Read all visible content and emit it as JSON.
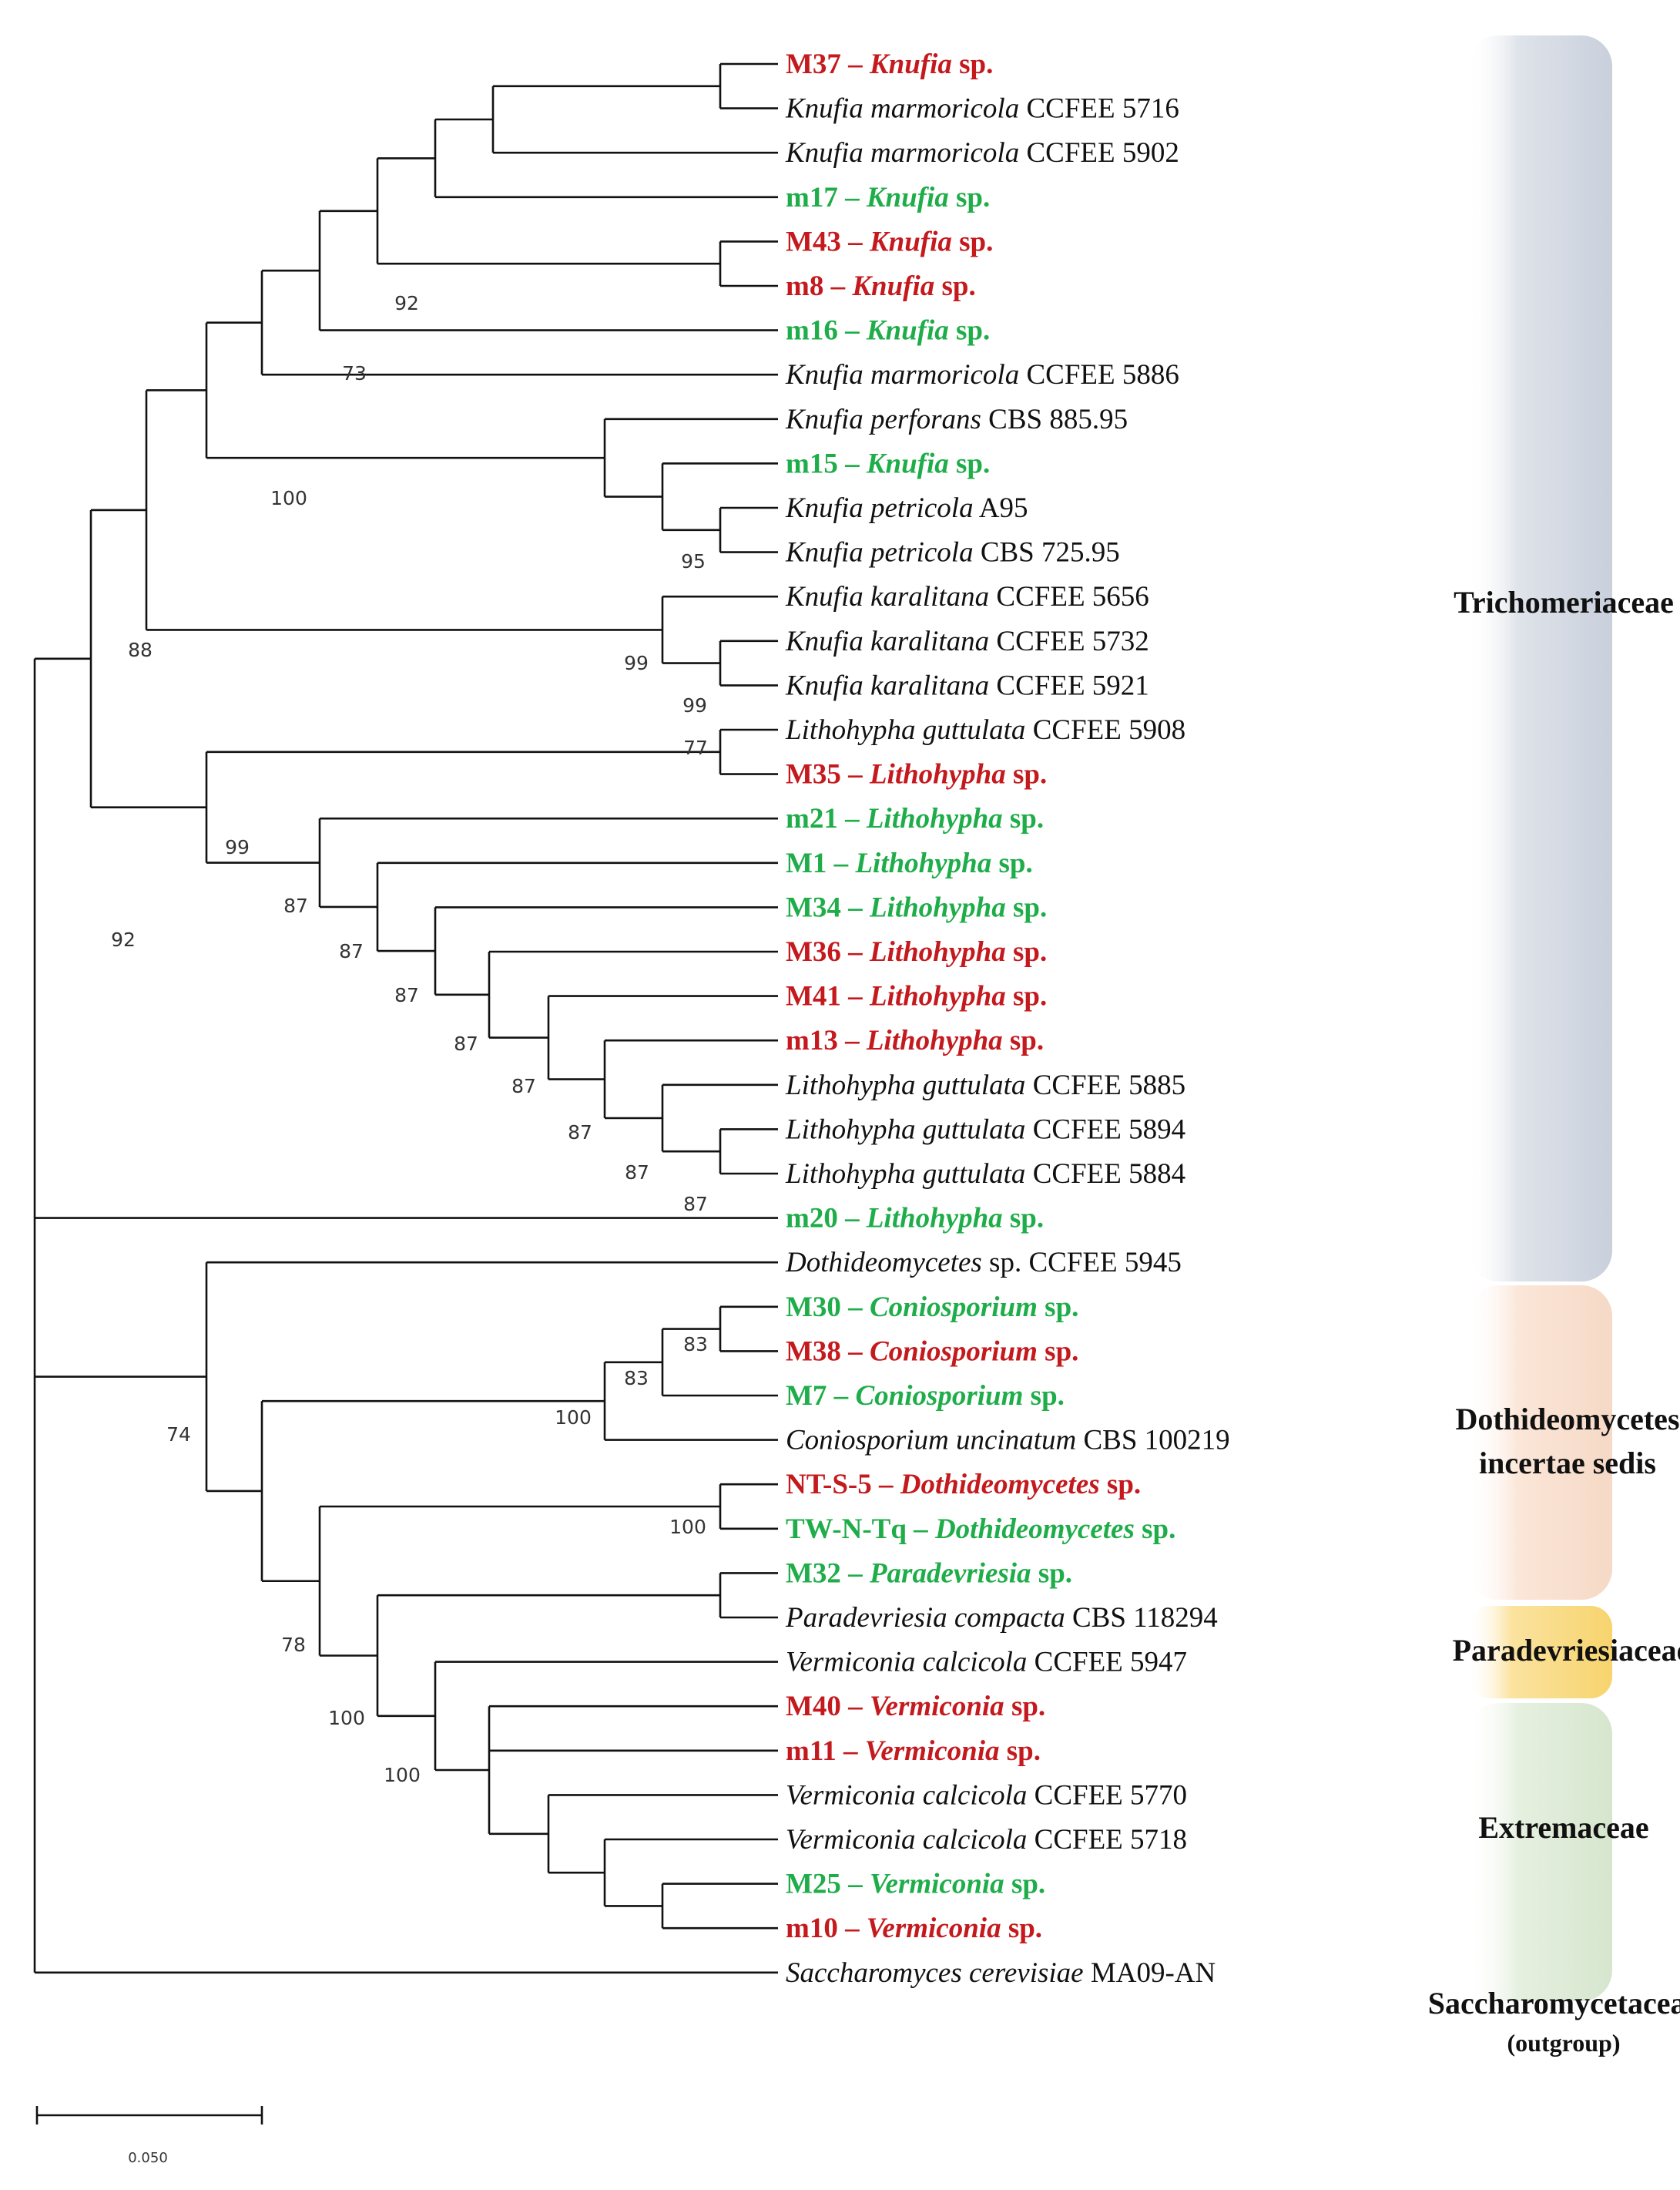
{
  "colors": {
    "red": "#c41a1e",
    "green": "#1fad4a",
    "black": "#111111",
    "band_trichomeriaceae": "#ced5e0",
    "band_dothideomycetes": "#f7ddcb",
    "band_paradevriesiaceae": "#f8d77c",
    "band_extremaceae": "#dbe9d3"
  },
  "taxa": [
    {
      "id": "M37",
      "style": "red",
      "parts": [
        [
          "M37 – ",
          0
        ],
        [
          "Knufia",
          1
        ],
        [
          " sp.",
          0
        ]
      ]
    },
    {
      "id": "KmarCCFEE5716",
      "style": "black",
      "parts": [
        [
          "Knufia marmoricola",
          1
        ],
        [
          " CCFEE 5716",
          0
        ]
      ]
    },
    {
      "id": "KmarCCFEE5902",
      "style": "black",
      "parts": [
        [
          "Knufia marmoricola",
          1
        ],
        [
          " CCFEE 5902",
          0
        ]
      ]
    },
    {
      "id": "m17",
      "style": "green",
      "parts": [
        [
          "m17 – ",
          0
        ],
        [
          "Knufia",
          1
        ],
        [
          " sp.",
          0
        ]
      ]
    },
    {
      "id": "M43",
      "style": "red",
      "parts": [
        [
          "M43 – ",
          0
        ],
        [
          "Knufia",
          1
        ],
        [
          " sp.",
          0
        ]
      ]
    },
    {
      "id": "m8",
      "style": "red",
      "parts": [
        [
          "m8 – ",
          0
        ],
        [
          "Knufia",
          1
        ],
        [
          " sp.",
          0
        ]
      ]
    },
    {
      "id": "m16",
      "style": "green",
      "parts": [
        [
          "m16 – ",
          0
        ],
        [
          "Knufia",
          1
        ],
        [
          " sp.",
          0
        ]
      ]
    },
    {
      "id": "KmarCCFEE5886",
      "style": "black",
      "parts": [
        [
          "Knufia marmoricola",
          1
        ],
        [
          " CCFEE 5886",
          0
        ]
      ]
    },
    {
      "id": "KperCBS88595",
      "style": "black",
      "parts": [
        [
          "Knufia perforans",
          1
        ],
        [
          " CBS 885.95",
          0
        ]
      ]
    },
    {
      "id": "m15",
      "style": "green",
      "parts": [
        [
          "m15 – ",
          0
        ],
        [
          "Knufia",
          1
        ],
        [
          " sp.",
          0
        ]
      ]
    },
    {
      "id": "KpetA95",
      "style": "black",
      "parts": [
        [
          "Knufia petricola",
          1
        ],
        [
          " A95",
          0
        ]
      ]
    },
    {
      "id": "KpetCBS72595",
      "style": "black",
      "parts": [
        [
          "Knufia petricola",
          1
        ],
        [
          " CBS 725.95",
          0
        ]
      ]
    },
    {
      "id": "Kkar5656",
      "style": "black",
      "parts": [
        [
          "Knufia karalitana",
          1
        ],
        [
          " CCFEE 5656",
          0
        ]
      ]
    },
    {
      "id": "Kkar5732",
      "style": "black",
      "parts": [
        [
          "Knufia karalitana",
          1
        ],
        [
          " CCFEE 5732",
          0
        ]
      ]
    },
    {
      "id": "Kkar5921",
      "style": "black",
      "parts": [
        [
          "Knufia karalitana",
          1
        ],
        [
          " CCFEE 5921",
          0
        ]
      ]
    },
    {
      "id": "Lgut5908",
      "style": "black",
      "parts": [
        [
          "Lithohypha guttulata",
          1
        ],
        [
          " CCFEE 5908",
          0
        ]
      ]
    },
    {
      "id": "M35",
      "style": "red",
      "parts": [
        [
          "M35 – ",
          0
        ],
        [
          "Lithohypha",
          1
        ],
        [
          " sp.",
          0
        ]
      ]
    },
    {
      "id": "m21",
      "style": "green",
      "parts": [
        [
          "m21 – ",
          0
        ],
        [
          "Lithohypha",
          1
        ],
        [
          " sp.",
          0
        ]
      ]
    },
    {
      "id": "M1",
      "style": "green",
      "parts": [
        [
          "M1 – ",
          0
        ],
        [
          "Lithohypha",
          1
        ],
        [
          " sp.",
          0
        ]
      ]
    },
    {
      "id": "M34",
      "style": "green",
      "parts": [
        [
          "M34 – ",
          0
        ],
        [
          "Lithohypha",
          1
        ],
        [
          " sp.",
          0
        ]
      ]
    },
    {
      "id": "M36",
      "style": "red",
      "parts": [
        [
          "M36 – ",
          0
        ],
        [
          "Lithohypha",
          1
        ],
        [
          " sp.",
          0
        ]
      ]
    },
    {
      "id": "M41",
      "style": "red",
      "parts": [
        [
          "M41 – ",
          0
        ],
        [
          "Lithohypha",
          1
        ],
        [
          " sp.",
          0
        ]
      ]
    },
    {
      "id": "m13",
      "style": "red",
      "parts": [
        [
          "m13 – ",
          0
        ],
        [
          "Lithohypha",
          1
        ],
        [
          " sp.",
          0
        ]
      ]
    },
    {
      "id": "Lgut5885",
      "style": "black",
      "parts": [
        [
          "Lithohypha guttulata",
          1
        ],
        [
          " CCFEE 5885",
          0
        ]
      ]
    },
    {
      "id": "Lgut5894",
      "style": "black",
      "parts": [
        [
          "Lithohypha guttulata",
          1
        ],
        [
          " CCFEE 5894",
          0
        ]
      ]
    },
    {
      "id": "Lgut5884",
      "style": "black",
      "parts": [
        [
          "Lithohypha guttulata",
          1
        ],
        [
          " CCFEE 5884",
          0
        ]
      ]
    },
    {
      "id": "m20",
      "style": "green",
      "parts": [
        [
          "m20 – ",
          0
        ],
        [
          "Lithohypha",
          1
        ],
        [
          " sp.",
          0
        ]
      ]
    },
    {
      "id": "Doth5945",
      "style": "black",
      "parts": [
        [
          "Dothideomycetes",
          1
        ],
        [
          " sp. CCFEE 5945",
          0
        ]
      ]
    },
    {
      "id": "M30",
      "style": "green",
      "parts": [
        [
          "M30 – ",
          0
        ],
        [
          "Coniosporium",
          1
        ],
        [
          " sp.",
          0
        ]
      ]
    },
    {
      "id": "M38",
      "style": "red",
      "parts": [
        [
          "M38 – ",
          0
        ],
        [
          "Coniosporium",
          1
        ],
        [
          " sp.",
          0
        ]
      ]
    },
    {
      "id": "M7",
      "style": "green",
      "parts": [
        [
          "M7 – ",
          0
        ],
        [
          "Coniosporium",
          1
        ],
        [
          " sp.",
          0
        ]
      ]
    },
    {
      "id": "CuncCBS100219",
      "style": "black",
      "parts": [
        [
          "Coniosporium uncinatum",
          1
        ],
        [
          " CBS 100219",
          0
        ]
      ]
    },
    {
      "id": "NTS5",
      "style": "red",
      "parts": [
        [
          "NT-S-5 – ",
          0
        ],
        [
          "Dothideomycetes",
          1
        ],
        [
          " sp.",
          0
        ]
      ]
    },
    {
      "id": "TWNTq",
      "style": "green",
      "parts": [
        [
          "TW-N-Tq – ",
          0
        ],
        [
          "Dothideomycetes",
          1
        ],
        [
          " sp.",
          0
        ]
      ]
    },
    {
      "id": "M32",
      "style": "green",
      "parts": [
        [
          "M32 – ",
          0
        ],
        [
          "Paradevriesia",
          1
        ],
        [
          " sp.",
          0
        ]
      ]
    },
    {
      "id": "PcomCBS118294",
      "style": "black",
      "parts": [
        [
          "Paradevriesia compacta",
          1
        ],
        [
          " CBS 118294",
          0
        ]
      ]
    },
    {
      "id": "Vcal5947",
      "style": "black",
      "parts": [
        [
          "Vermiconia calcicola",
          1
        ],
        [
          " CCFEE 5947",
          0
        ]
      ]
    },
    {
      "id": "M40",
      "style": "red",
      "parts": [
        [
          "M40 – ",
          0
        ],
        [
          "Vermiconia",
          1
        ],
        [
          " sp.",
          0
        ]
      ]
    },
    {
      "id": "m11",
      "style": "red",
      "parts": [
        [
          "m11 – ",
          0
        ],
        [
          "Vermiconia",
          1
        ],
        [
          " sp.",
          0
        ]
      ]
    },
    {
      "id": "Vcal5770",
      "style": "black",
      "parts": [
        [
          "Vermiconia calcicola",
          1
        ],
        [
          " CCFEE 5770",
          0
        ]
      ]
    },
    {
      "id": "Vcal5718",
      "style": "black",
      "parts": [
        [
          "Vermiconia calcicola",
          1
        ],
        [
          " CCFEE 5718",
          0
        ]
      ]
    },
    {
      "id": "M25",
      "style": "green",
      "parts": [
        [
          "M25 – ",
          0
        ],
        [
          "Vermiconia",
          1
        ],
        [
          " sp.",
          0
        ]
      ]
    },
    {
      "id": "m10",
      "style": "red",
      "parts": [
        [
          "m10 – ",
          0
        ],
        [
          "Vermiconia",
          1
        ],
        [
          " sp.",
          0
        ]
      ]
    },
    {
      "id": "Scer",
      "style": "black",
      "parts": [
        [
          "Saccharomyces cerevisiae",
          1
        ],
        [
          " MA09-AN",
          0
        ]
      ]
    }
  ],
  "bootstrap_values": [
    "92",
    "73",
    "100",
    "95",
    "99",
    "99",
    "88",
    "77",
    "99",
    "87",
    "87",
    "87",
    "87",
    "87",
    "87",
    "87",
    "87",
    "92",
    "83",
    "83",
    "100",
    "74",
    "100",
    "78",
    "100",
    "100"
  ],
  "families": {
    "trichomeriaceae": "Trichomeriaceae",
    "dothideomycetes_line1": "Dothideomycetes",
    "dothideomycetes_line2": "incertae sedis",
    "paradevriesiaceae": "Paradevriesiaceae",
    "extremaceae": "Extremaceae",
    "saccharomycetaceae": "Saccharomycetaceae",
    "outgroup": "(outgroup)"
  },
  "scale_bar": {
    "label": "0.050"
  }
}
